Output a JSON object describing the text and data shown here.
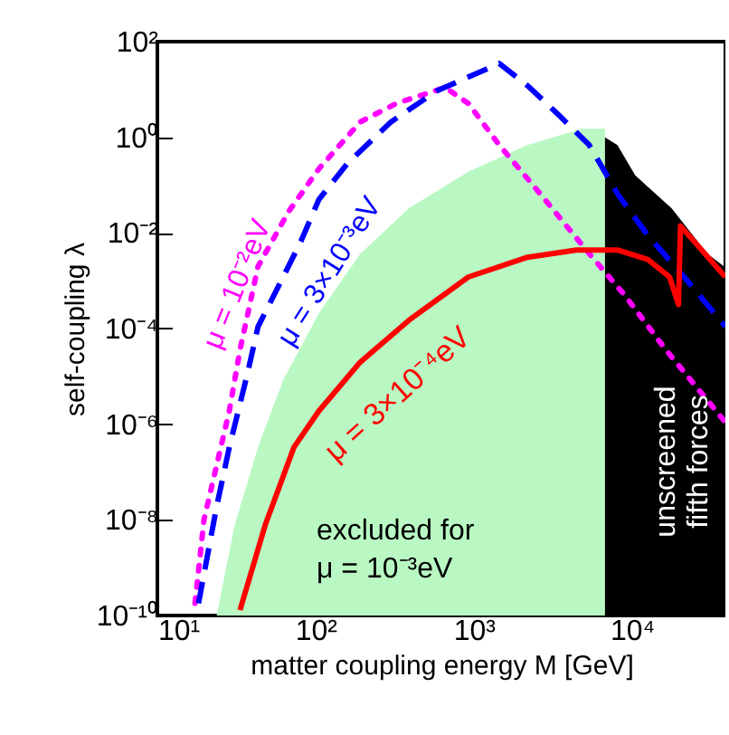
{
  "chart_data": {
    "type": "line",
    "xlabel": "matter coupling energy M [GeV]",
    "ylabel": "self-coupling λ",
    "log": "xy",
    "grid": false,
    "xlim": [
      10,
      39000
    ],
    "ylim": [
      1e-10,
      100
    ],
    "xticks": [
      {
        "value": 10,
        "label": "10¹"
      },
      {
        "value": 100,
        "label": "10²"
      },
      {
        "value": 1000,
        "label": "10³"
      },
      {
        "value": 10000,
        "label": "10⁴"
      }
    ],
    "yticks": [
      {
        "value": 1e-10,
        "label": "10⁻¹⁰"
      },
      {
        "value": 1e-08,
        "label": "10⁻⁸"
      },
      {
        "value": 1e-06,
        "label": "10⁻⁶"
      },
      {
        "value": 0.0001,
        "label": "10⁻⁴"
      },
      {
        "value": 0.01,
        "label": "10⁻²"
      },
      {
        "value": 1,
        "label": "10⁰"
      },
      {
        "value": 100,
        "label": "10²"
      }
    ],
    "series": [
      {
        "type": "area",
        "name": "excluded for\nμ = 10⁻³eV",
        "color": "#b9f8c3",
        "x": [
          23.7,
          30.8,
          43.3,
          62.4,
          105,
          192,
          390,
          925,
          2190,
          4800,
          6760
        ],
        "values": [
          1e-10,
          7.7e-09,
          3.3e-07,
          8.3e-06,
          0.00021,
          0.0037,
          0.033,
          0.19,
          0.69,
          1.5,
          1.5
        ]
      },
      {
        "type": "area",
        "name": "unscreened\nfifth forces",
        "color": "#000000",
        "x": [
          6760,
          8100,
          10500,
          17800,
          30000,
          39000
        ],
        "values": [
          1.0,
          0.69,
          0.16,
          0.033,
          0.0037,
          0.0019
        ]
      },
      {
        "name": "μ = 10⁻²eV",
        "color": "#ff00ff",
        "line_style": "dotted",
        "x": [
          17.3,
          19.7,
          28.5,
          33.3,
          43.3,
          67.6,
          105,
          192,
          324,
          660,
          925,
          1450,
          2630,
          5370,
          9000,
          16400,
          39000
        ],
        "values": [
          1.8e-10,
          1e-08,
          1.9e-06,
          3.6e-05,
          0.002,
          0.028,
          0.22,
          2.1,
          5.1,
          11,
          5.1,
          0.69,
          0.066,
          0.0037,
          0.0005,
          3.6e-05,
          1.1e-06
        ]
      },
      {
        "name": "μ = 3×10⁻³eV",
        "color": "#0000ff",
        "line_style": "dashed",
        "x": [
          18.2,
          23.7,
          28.5,
          37,
          43.3,
          62.4,
          81,
          105,
          160,
          300,
          590,
          1450,
          2190,
          3420,
          5370,
          8100,
          12600,
          21400,
          39000
        ],
        "values": [
          1.8e-10,
          1.9e-08,
          3.3e-07,
          1.1e-05,
          0.00011,
          0.0012,
          0.0068,
          0.05,
          0.29,
          2.1,
          9.5,
          35,
          12,
          3,
          0.69,
          0.066,
          0.0089,
          0.0012,
          0.00011
        ]
      },
      {
        "name": "μ = 3×10⁻⁴eV",
        "color": "#ff0000",
        "line_style": "solid",
        "x": [
          33.3,
          48,
          73,
          105,
          192,
          390,
          925,
          2190,
          4450,
          8100,
          12600,
          17300,
          19700,
          20300,
          39000
        ],
        "values": [
          1.3e-10,
          7.7e-09,
          3.3e-07,
          1.9e-06,
          2e-05,
          0.00015,
          0.0012,
          0.0031,
          0.0044,
          0.0044,
          0.0028,
          0.0012,
          0.00032,
          0.014,
          0.0012
        ]
      }
    ]
  }
}
